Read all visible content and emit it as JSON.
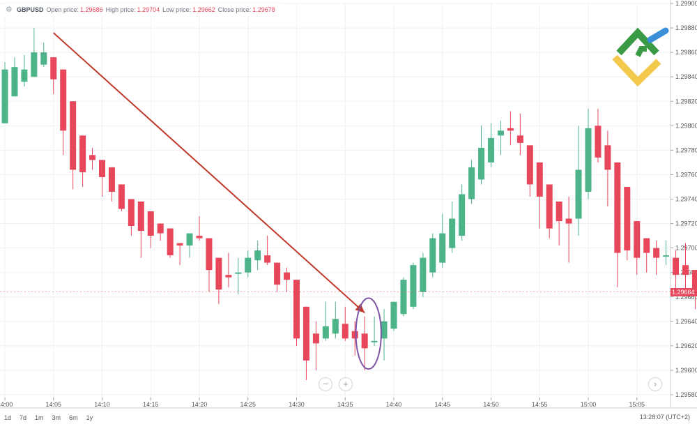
{
  "header": {
    "symbol": "GBPUSD",
    "open_label": "Open price:",
    "open_value": "1.29686",
    "high_label": "High price:",
    "high_value": "1.29704",
    "low_label": "Low price:",
    "low_value": "1.29662",
    "close_label": "Close price:",
    "close_value": "1.29678",
    "settings_icon": "gear-icon"
  },
  "ranges": [
    "1d",
    "7d",
    "1m",
    "3m",
    "6m",
    "1y"
  ],
  "footer": {
    "clock": "13:28:07 (UTC+2)"
  },
  "controls": {
    "zoom_out": "−",
    "zoom_in": "+",
    "scroll_right": "›"
  },
  "logo": {
    "icon": "broker-logo-icon"
  },
  "colors": {
    "up": "#4db389",
    "down": "#e8465a",
    "arrow": "#c0392b",
    "ellipse": "#7e57a6",
    "logo_green": "#3a9a46",
    "logo_blue": "#3b8fd8",
    "logo_yellow": "#f2c94c"
  },
  "chart_data": {
    "type": "candlestick",
    "title": "GBPUSD",
    "xlabel": "",
    "ylabel": "",
    "ylim": [
      1.2958,
      1.299
    ],
    "yticks": [
      "1.29580",
      "1.29600",
      "1.29620",
      "1.29640",
      "1.29660",
      "1.29680",
      "1.29700",
      "1.29720",
      "1.29740",
      "1.29760",
      "1.29780",
      "1.29800",
      "1.29820",
      "1.29840",
      "1.29860",
      "1.29880",
      "1.29900"
    ],
    "xticks": [
      {
        "t": 0,
        "label": "14:00"
      },
      {
        "t": 5,
        "label": "14:05"
      },
      {
        "t": 10,
        "label": "14:10"
      },
      {
        "t": 15,
        "label": "14:15"
      },
      {
        "t": 20,
        "label": "14:20"
      },
      {
        "t": 25,
        "label": "14:25"
      },
      {
        "t": 30,
        "label": "14:30"
      },
      {
        "t": 35,
        "label": "14:35"
      },
      {
        "t": 40,
        "label": "14:40"
      },
      {
        "t": 45,
        "label": "14:45"
      },
      {
        "t": 50,
        "label": "14:50"
      },
      {
        "t": 55,
        "label": "14:55"
      },
      {
        "t": 60,
        "label": "15:00"
      },
      {
        "t": 65,
        "label": "15:05"
      }
    ],
    "current_price": "1.29664",
    "candles": [
      {
        "t": 0,
        "o": 1.29802,
        "h": 1.29852,
        "l": 1.29802,
        "c": 1.29846
      },
      {
        "t": 1,
        "o": 1.29824,
        "h": 1.29856,
        "l": 1.29824,
        "c": 1.29848
      },
      {
        "t": 2,
        "o": 1.29836,
        "h": 1.29858,
        "l": 1.29832,
        "c": 1.29846
      },
      {
        "t": 3,
        "o": 1.2984,
        "h": 1.2988,
        "l": 1.2984,
        "c": 1.2986
      },
      {
        "t": 4,
        "o": 1.2985,
        "h": 1.29868,
        "l": 1.29848,
        "c": 1.2986
      },
      {
        "t": 5,
        "o": 1.29856,
        "h": 1.29856,
        "l": 1.29826,
        "c": 1.29838
      },
      {
        "t": 6,
        "o": 1.29846,
        "h": 1.29846,
        "l": 1.29776,
        "c": 1.29796
      },
      {
        "t": 7,
        "o": 1.2982,
        "h": 1.2982,
        "l": 1.29748,
        "c": 1.29764
      },
      {
        "t": 8,
        "o": 1.29792,
        "h": 1.29792,
        "l": 1.2975,
        "c": 1.29762
      },
      {
        "t": 9,
        "o": 1.29776,
        "h": 1.29782,
        "l": 1.29764,
        "c": 1.29772
      },
      {
        "t": 10,
        "o": 1.29772,
        "h": 1.29772,
        "l": 1.29742,
        "c": 1.29758
      },
      {
        "t": 11,
        "o": 1.29766,
        "h": 1.29766,
        "l": 1.29738,
        "c": 1.29746
      },
      {
        "t": 12,
        "o": 1.29752,
        "h": 1.29752,
        "l": 1.2973,
        "c": 1.29732
      },
      {
        "t": 13,
        "o": 1.2974,
        "h": 1.2974,
        "l": 1.2971,
        "c": 1.29718
      },
      {
        "t": 14,
        "o": 1.29738,
        "h": 1.29738,
        "l": 1.29692,
        "c": 1.29714
      },
      {
        "t": 15,
        "o": 1.2973,
        "h": 1.2973,
        "l": 1.297,
        "c": 1.2971
      },
      {
        "t": 16,
        "o": 1.2972,
        "h": 1.2972,
        "l": 1.29706,
        "c": 1.29712
      },
      {
        "t": 17,
        "o": 1.29716,
        "h": 1.29716,
        "l": 1.29692,
        "c": 1.29694
      },
      {
        "t": 18,
        "o": 1.29704,
        "h": 1.29704,
        "l": 1.29686,
        "c": 1.29702
      },
      {
        "t": 19,
        "o": 1.29702,
        "h": 1.29712,
        "l": 1.29692,
        "c": 1.29712
      },
      {
        "t": 20,
        "o": 1.2971,
        "h": 1.29726,
        "l": 1.29706,
        "c": 1.29708
      },
      {
        "t": 21,
        "o": 1.29708,
        "h": 1.29708,
        "l": 1.29664,
        "c": 1.29682
      },
      {
        "t": 22,
        "o": 1.29692,
        "h": 1.29692,
        "l": 1.29654,
        "c": 1.29666
      },
      {
        "t": 23,
        "o": 1.29678,
        "h": 1.29696,
        "l": 1.29668,
        "c": 1.29676
      },
      {
        "t": 24,
        "o": 1.2968,
        "h": 1.29692,
        "l": 1.29662,
        "c": 1.2968
      },
      {
        "t": 25,
        "o": 1.2968,
        "h": 1.29698,
        "l": 1.29676,
        "c": 1.29692
      },
      {
        "t": 26,
        "o": 1.2969,
        "h": 1.29706,
        "l": 1.29682,
        "c": 1.29698
      },
      {
        "t": 27,
        "o": 1.29694,
        "h": 1.2971,
        "l": 1.29686,
        "c": 1.29688
      },
      {
        "t": 28,
        "o": 1.29688,
        "h": 1.29688,
        "l": 1.29664,
        "c": 1.2967
      },
      {
        "t": 29,
        "o": 1.2968,
        "h": 1.29684,
        "l": 1.29664,
        "c": 1.29674
      },
      {
        "t": 30,
        "o": 1.29674,
        "h": 1.29674,
        "l": 1.2962,
        "c": 1.29626
      },
      {
        "t": 31,
        "o": 1.29652,
        "h": 1.29652,
        "l": 1.29592,
        "c": 1.29608
      },
      {
        "t": 32,
        "o": 1.2963,
        "h": 1.2964,
        "l": 1.296,
        "c": 1.29622
      },
      {
        "t": 33,
        "o": 1.29626,
        "h": 1.29656,
        "l": 1.29624,
        "c": 1.29636
      },
      {
        "t": 34,
        "o": 1.2963,
        "h": 1.29656,
        "l": 1.29626,
        "c": 1.29642
      },
      {
        "t": 35,
        "o": 1.29638,
        "h": 1.29652,
        "l": 1.29624,
        "c": 1.29626
      },
      {
        "t": 36,
        "o": 1.29632,
        "h": 1.2964,
        "l": 1.29612,
        "c": 1.29626
      },
      {
        "t": 37,
        "o": 1.2963,
        "h": 1.29644,
        "l": 1.296,
        "c": 1.29618
      },
      {
        "t": 38,
        "o": 1.29624,
        "h": 1.29644,
        "l": 1.2962,
        "c": 1.29624
      },
      {
        "t": 39,
        "o": 1.29626,
        "h": 1.2965,
        "l": 1.29608,
        "c": 1.2964
      },
      {
        "t": 40,
        "o": 1.29634,
        "h": 1.29656,
        "l": 1.29632,
        "c": 1.29656
      },
      {
        "t": 41,
        "o": 1.29646,
        "h": 1.29676,
        "l": 1.29644,
        "c": 1.29674
      },
      {
        "t": 42,
        "o": 1.29652,
        "h": 1.29688,
        "l": 1.2965,
        "c": 1.29686
      },
      {
        "t": 43,
        "o": 1.29664,
        "h": 1.29696,
        "l": 1.2966,
        "c": 1.29692
      },
      {
        "t": 44,
        "o": 1.2968,
        "h": 1.29712,
        "l": 1.29676,
        "c": 1.29708
      },
      {
        "t": 45,
        "o": 1.29688,
        "h": 1.29728,
        "l": 1.29684,
        "c": 1.29712
      },
      {
        "t": 46,
        "o": 1.297,
        "h": 1.29738,
        "l": 1.29696,
        "c": 1.29724
      },
      {
        "t": 47,
        "o": 1.2971,
        "h": 1.29752,
        "l": 1.29706,
        "c": 1.29744
      },
      {
        "t": 48,
        "o": 1.2974,
        "h": 1.29772,
        "l": 1.29736,
        "c": 1.29766
      },
      {
        "t": 49,
        "o": 1.29756,
        "h": 1.298,
        "l": 1.29752,
        "c": 1.29782
      },
      {
        "t": 50,
        "o": 1.2977,
        "h": 1.29802,
        "l": 1.29766,
        "c": 1.2979
      },
      {
        "t": 51,
        "o": 1.29792,
        "h": 1.29804,
        "l": 1.29776,
        "c": 1.29796
      },
      {
        "t": 52,
        "o": 1.29798,
        "h": 1.29812,
        "l": 1.29784,
        "c": 1.29796
      },
      {
        "t": 53,
        "o": 1.29792,
        "h": 1.2981,
        "l": 1.29776,
        "c": 1.29786
      },
      {
        "t": 54,
        "o": 1.29784,
        "h": 1.29784,
        "l": 1.29742,
        "c": 1.29752
      },
      {
        "t": 55,
        "o": 1.2977,
        "h": 1.2977,
        "l": 1.29716,
        "c": 1.29742
      },
      {
        "t": 56,
        "o": 1.29752,
        "h": 1.29752,
        "l": 1.29708,
        "c": 1.29716
      },
      {
        "t": 57,
        "o": 1.29738,
        "h": 1.29738,
        "l": 1.29702,
        "c": 1.29722
      },
      {
        "t": 58,
        "o": 1.29724,
        "h": 1.29742,
        "l": 1.29688,
        "c": 1.2972
      },
      {
        "t": 59,
        "o": 1.29724,
        "h": 1.298,
        "l": 1.2971,
        "c": 1.29764
      },
      {
        "t": 60,
        "o": 1.29746,
        "h": 1.29814,
        "l": 1.2974,
        "c": 1.29798
      },
      {
        "t": 61,
        "o": 1.298,
        "h": 1.29814,
        "l": 1.2977,
        "c": 1.29774
      },
      {
        "t": 62,
        "o": 1.29784,
        "h": 1.29796,
        "l": 1.29734,
        "c": 1.29764
      },
      {
        "t": 63,
        "o": 1.2977,
        "h": 1.2977,
        "l": 1.29668,
        "c": 1.29696
      },
      {
        "t": 64,
        "o": 1.2975,
        "h": 1.2975,
        "l": 1.2969,
        "c": 1.29698
      },
      {
        "t": 65,
        "o": 1.29722,
        "h": 1.29722,
        "l": 1.29678,
        "c": 1.29692
      },
      {
        "t": 66,
        "o": 1.29708,
        "h": 1.29708,
        "l": 1.2968,
        "c": 1.29696
      },
      {
        "t": 67,
        "o": 1.297,
        "h": 1.29706,
        "l": 1.29678,
        "c": 1.29692
      },
      {
        "t": 68,
        "o": 1.29694,
        "h": 1.29706,
        "l": 1.29686,
        "c": 1.29694
      },
      {
        "t": 69,
        "o": 1.29692,
        "h": 1.29698,
        "l": 1.29664,
        "c": 1.29678
      },
      {
        "t": 70,
        "o": 1.29686,
        "h": 1.29704,
        "l": 1.29662,
        "c": 1.29678
      },
      {
        "t": 71,
        "o": 1.29682,
        "h": 1.29682,
        "l": 1.2965,
        "c": 1.29664
      }
    ],
    "annotations": [
      {
        "type": "arrow",
        "from": {
          "t": 5,
          "price": 1.29876
        },
        "to": {
          "t": 37,
          "price": 1.29647
        }
      },
      {
        "type": "ellipse",
        "center": {
          "t": 37.4,
          "price": 1.2963
        },
        "rx_candles": 1.3,
        "ry_price": 0.00029
      }
    ]
  }
}
